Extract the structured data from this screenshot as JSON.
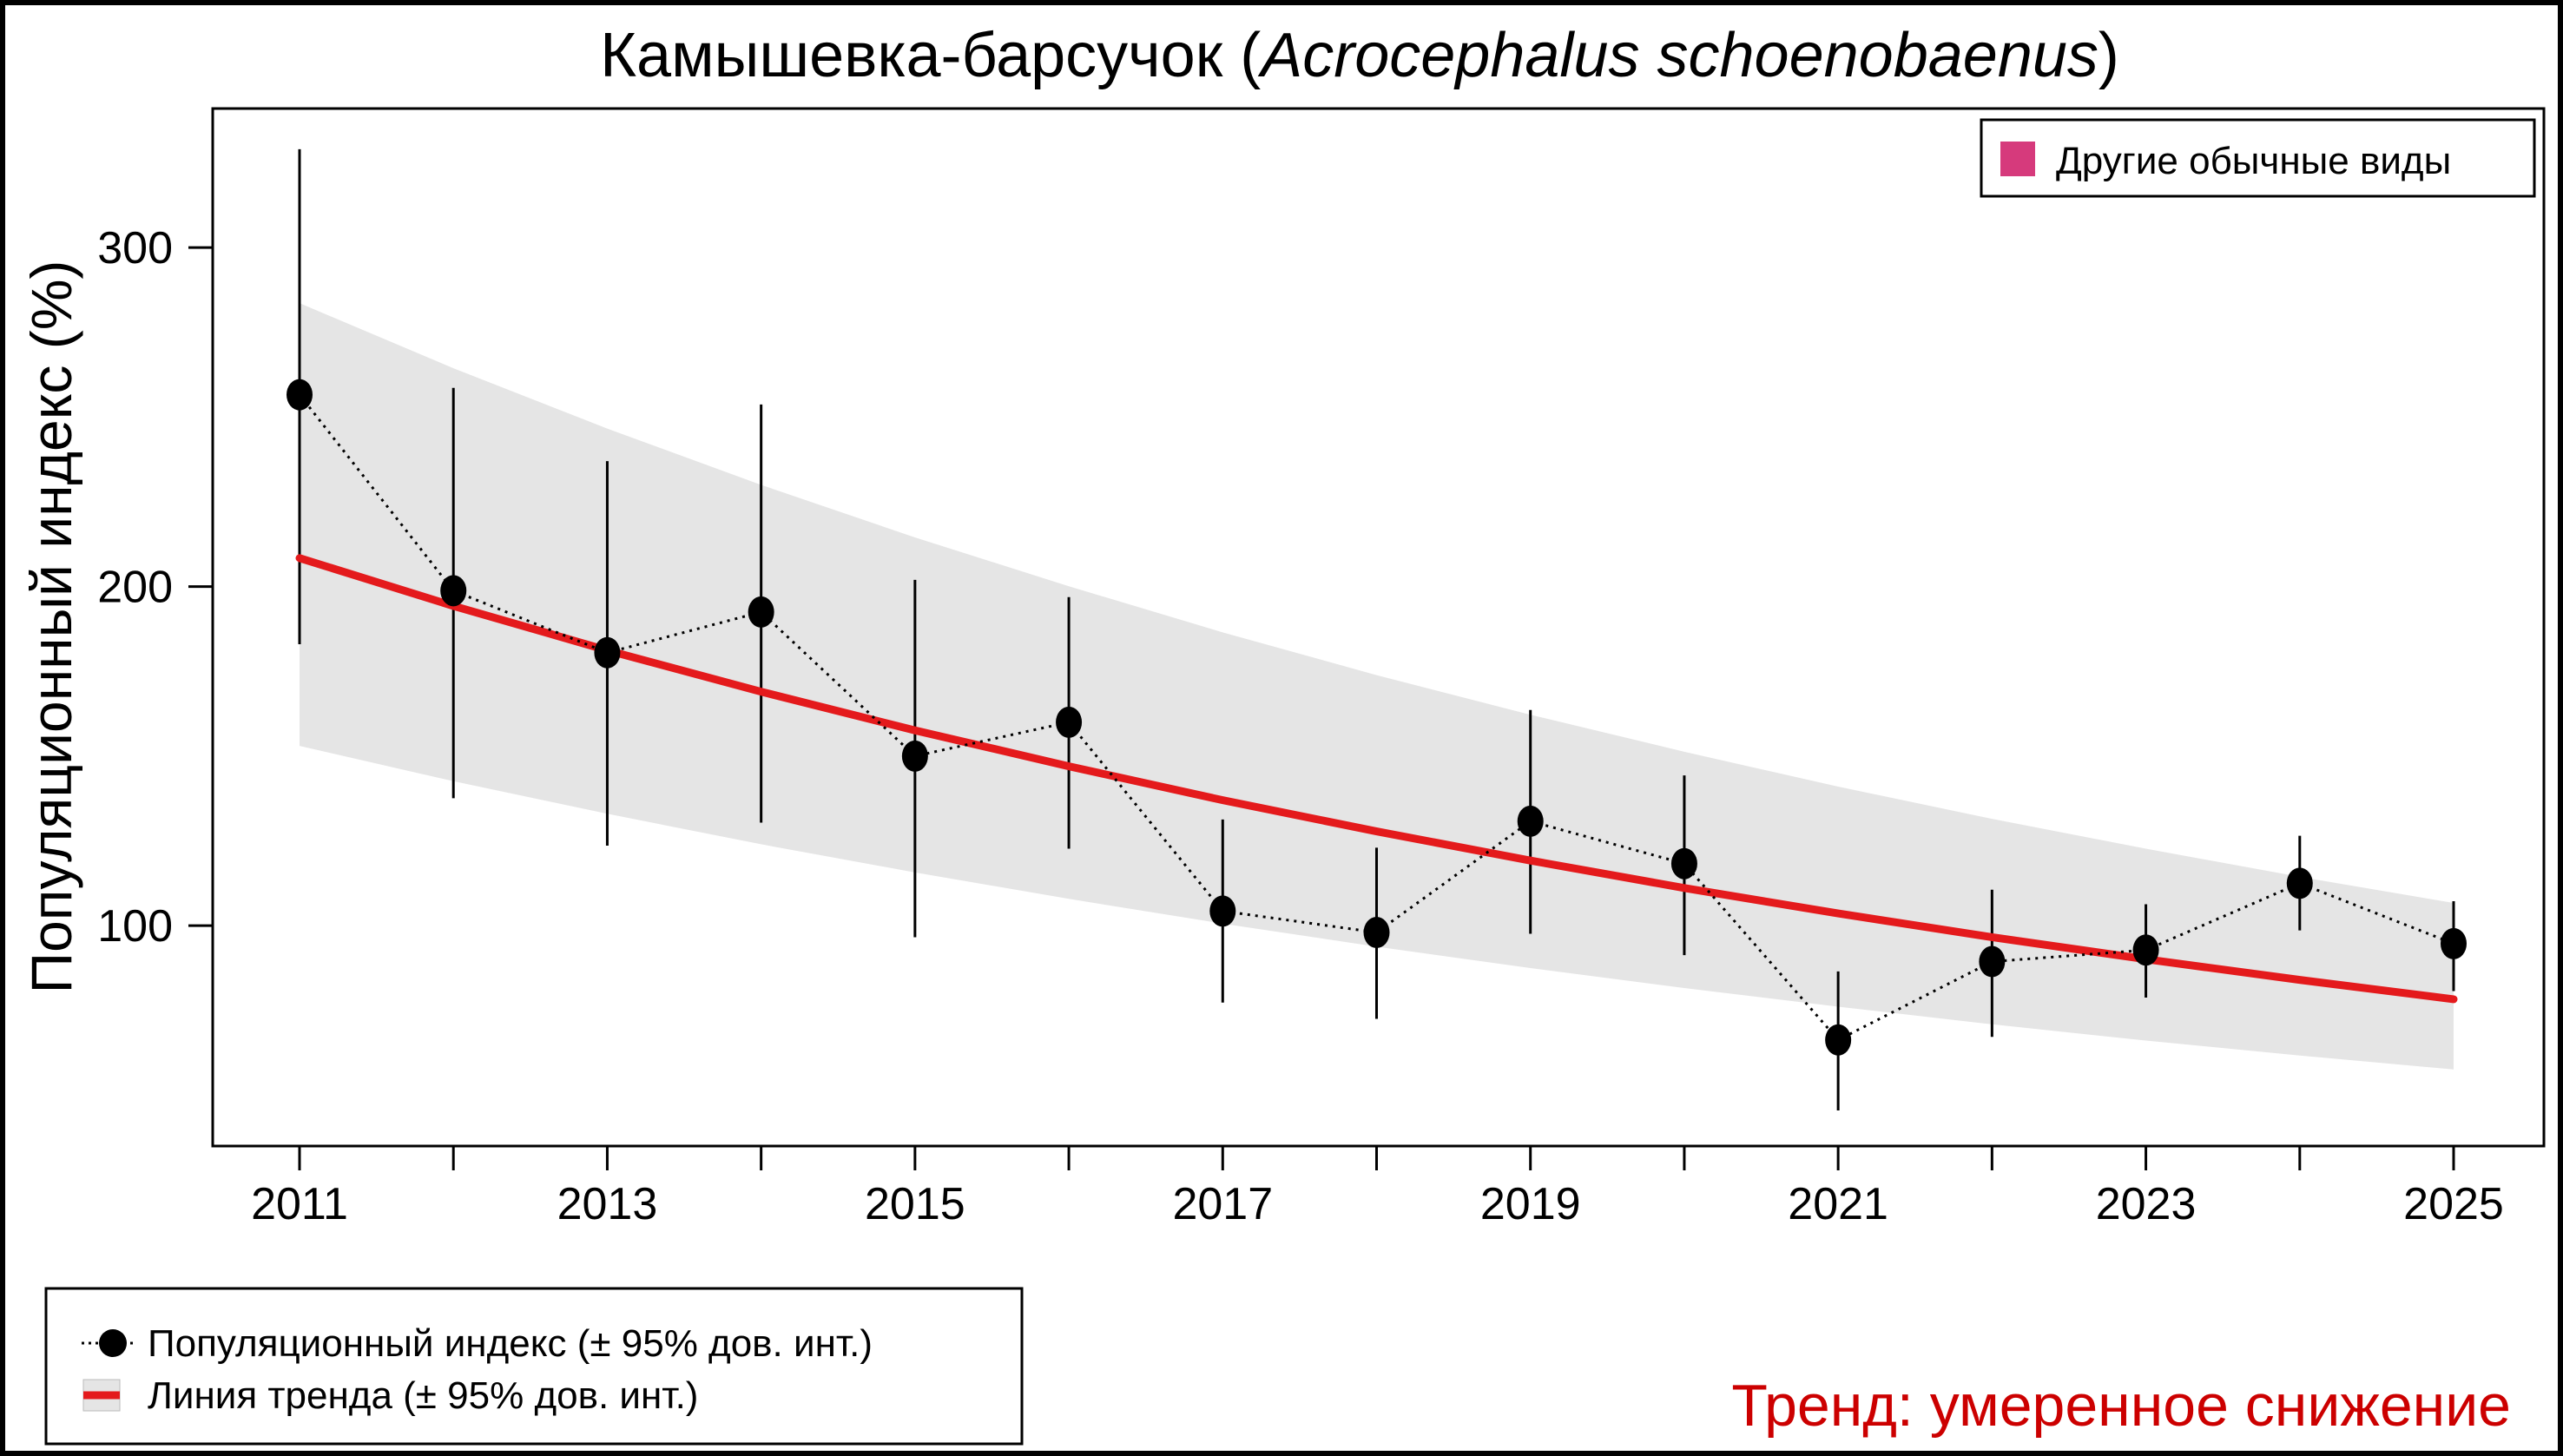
{
  "chart_data": {
    "type": "line",
    "title_plain": "Камышевка-барсучок (",
    "title_italic": "Acrocephalus schoenobaenus",
    "title_close": ")",
    "ylabel": "Популяционный индекс (%)",
    "xlabel": "",
    "x": [
      2011,
      2012,
      2013,
      2014,
      2015,
      2016,
      2017,
      2018,
      2019,
      2020,
      2021,
      2022,
      2023,
      2024,
      2025
    ],
    "x_tick_labels": [
      "2011",
      "2013",
      "2015",
      "2017",
      "2019",
      "2021",
      "2023",
      "2025"
    ],
    "y_ticks": [
      100,
      200,
      300
    ],
    "ylim": [
      35,
      341
    ],
    "grid": false,
    "series": [
      {
        "name": "Популяционный индекс (± 95% дов. инт.)",
        "values": [
          256.6,
          198.8,
          180.5,
          192.5,
          150.0,
          160.0,
          104.3,
          98.0,
          130.8,
          118.3,
          66.3,
          89.4,
          92.8,
          112.5,
          94.7
        ],
        "ci_lower": [
          183,
          137.6,
          123.6,
          130.4,
          96.6,
          122.7,
          77.3,
          72.5,
          97.6,
          91.3,
          45.5,
          67.2,
          78.8,
          98.6,
          80.7
        ],
        "ci_upper": [
          329,
          258.6,
          237,
          253.7,
          202,
          196.9,
          131.3,
          123,
          163.6,
          144.3,
          86.5,
          110.6,
          106.3,
          126.5,
          107.2
        ],
        "color": "#000000"
      },
      {
        "name": "Линия тренда (± 95% дов. инт.)",
        "values": [
          208.4,
          194.3,
          181.2,
          169.0,
          157.6,
          147.0,
          137.0,
          127.8,
          119.2,
          111.1,
          103.6,
          96.6,
          90.1,
          84.0,
          78.3
        ],
        "band_lower": [
          153.0,
          142.6,
          133.0,
          124.0,
          115.7,
          107.9,
          100.6,
          93.8,
          87.5,
          81.6,
          76.1,
          70.9,
          66.1,
          61.7,
          57.6
        ],
        "band_upper": [
          283.6,
          264.4,
          246.6,
          230.0,
          214.5,
          200.1,
          186.5,
          173.9,
          162.2,
          151.3,
          141.0,
          131.5,
          122.7,
          114.4,
          106.7
        ],
        "color": "#e41a1c",
        "band_color": "#e5e5e5"
      }
    ],
    "category_legend": {
      "label": "Другие обычные виды",
      "color": "#d63a7c",
      "position": "top-right"
    },
    "legend_position": "bottom-left",
    "annotation": {
      "text": "Тренд: умеренное снижение",
      "color": "#cc0000"
    }
  }
}
